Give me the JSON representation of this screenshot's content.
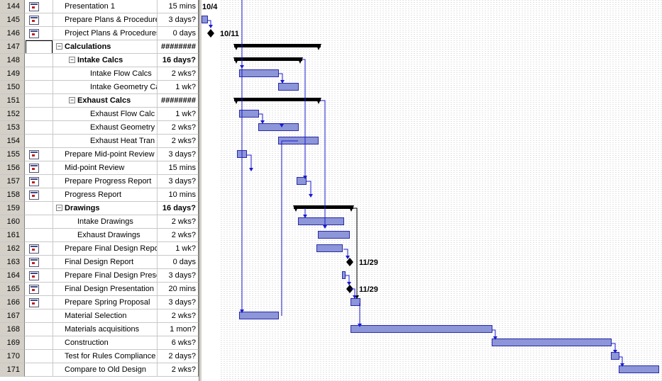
{
  "tasks": [
    {
      "id": "144",
      "name": "Presentation 1",
      "duration": "15 mins",
      "icon": "note-icon"
    },
    {
      "id": "145",
      "name": "Prepare Plans & Procedure",
      "duration": "3 days?",
      "icon": "note-icon"
    },
    {
      "id": "146",
      "name": "Project Plans & Procedures",
      "duration": "0 days",
      "icon": "note-icon"
    },
    {
      "id": "147",
      "name": "Calculations",
      "duration": "########",
      "summary": true,
      "level": 0
    },
    {
      "id": "148",
      "name": "Intake Calcs",
      "duration": "16 days?",
      "summary": true,
      "level": 1
    },
    {
      "id": "149",
      "name": "Intake Flow Calcs",
      "duration": "2 wks?",
      "level": 2
    },
    {
      "id": "150",
      "name": "Intake Geometry Ca",
      "duration": "1 wk?",
      "level": 2
    },
    {
      "id": "151",
      "name": "Exhaust Calcs",
      "duration": "########",
      "summary": true,
      "level": 1
    },
    {
      "id": "152",
      "name": "Exhaust Flow Calc",
      "duration": "1 wk?",
      "level": 2
    },
    {
      "id": "153",
      "name": "Exhaust Geometry",
      "duration": "2 wks?",
      "level": 2
    },
    {
      "id": "154",
      "name": "Exhaust Heat Tran",
      "duration": "2 wks?",
      "level": 2
    },
    {
      "id": "155",
      "name": "Prepare Mid-point Review",
      "duration": "3 days?",
      "icon": "note-icon"
    },
    {
      "id": "156",
      "name": "Mid-point Review",
      "duration": "15 mins",
      "icon": "note-icon"
    },
    {
      "id": "157",
      "name": "Prepare Progress Report",
      "duration": "3 days?",
      "icon": "note-icon"
    },
    {
      "id": "158",
      "name": "Progress Report",
      "duration": "10 mins",
      "icon": "note-icon"
    },
    {
      "id": "159",
      "name": "Drawings",
      "duration": "16 days?",
      "summary": true,
      "level": 0
    },
    {
      "id": "160",
      "name": "Intake Drawings",
      "duration": "2 wks?",
      "level": 1
    },
    {
      "id": "161",
      "name": "Exhaust Drawings",
      "duration": "2 wks?",
      "level": 1
    },
    {
      "id": "162",
      "name": "Prepare Final Design Repo",
      "duration": "1 wk?",
      "icon": "note-icon"
    },
    {
      "id": "163",
      "name": "Final Design Report",
      "duration": "0 days",
      "icon": "note-icon"
    },
    {
      "id": "164",
      "name": "Prepare Final Design Prese",
      "duration": "3 days?",
      "icon": "note-icon"
    },
    {
      "id": "165",
      "name": "Final Design Presentation",
      "duration": "20 mins",
      "icon": "note-icon"
    },
    {
      "id": "166",
      "name": "Prepare Spring Proposal",
      "duration": "3 days?",
      "icon": "note-icon"
    },
    {
      "id": "167",
      "name": "Material Selection",
      "duration": "2 wks?"
    },
    {
      "id": "168",
      "name": "Materials acquisitions",
      "duration": "1 mon?"
    },
    {
      "id": "169",
      "name": "Construction",
      "duration": "6 wks?"
    },
    {
      "id": "170",
      "name": "Test for Rules Compliance",
      "duration": "2 days?"
    },
    {
      "id": "171",
      "name": "Compare to Old Design",
      "duration": "2 wks?"
    }
  ],
  "milestone_labels": {
    "m144": "10/4",
    "m146": "10/11",
    "m163": "11/29",
    "m165": "11/29"
  },
  "colors": {
    "task_bar": "#8c96d8",
    "task_border": "#2a2aa8",
    "link": "#1a1ad0",
    "summary": "#000000",
    "grid_dot": "#c8c8c8"
  }
}
